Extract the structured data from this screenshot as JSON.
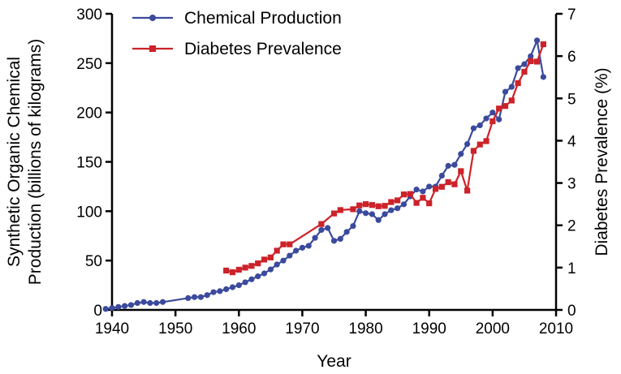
{
  "chart_data": {
    "type": "line",
    "xlabel": "Year",
    "ylabel_left_line1": "Synthetic  Organic  Chemical",
    "ylabel_left_line2": "Production (billions of kilograms)",
    "ylabel_right": "Diabetes  Prevalence (%)",
    "xlim": [
      1940,
      2010
    ],
    "ylim_left": [
      0,
      300
    ],
    "ylim_right": [
      0,
      7
    ],
    "x_ticks": [
      "1940",
      "1950",
      "1960",
      "1970",
      "1980",
      "1990",
      "2000",
      "2010"
    ],
    "y_left_ticks": [
      "0",
      "50",
      "100",
      "150",
      "200",
      "250",
      "300"
    ],
    "y_right_ticks": [
      "0",
      "1",
      "2",
      "3",
      "4",
      "5",
      "6",
      "7"
    ],
    "legend_position": "top-left",
    "series": [
      {
        "name": "Chemical  Production",
        "axis": "left",
        "color": "#3b4a9c",
        "marker": "circle",
        "x": [
          1939,
          1940,
          1941,
          1942,
          1943,
          1944,
          1945,
          1946,
          1947,
          1948,
          1952,
          1953,
          1954,
          1955,
          1956,
          1957,
          1958,
          1959,
          1960,
          1961,
          1962,
          1963,
          1964,
          1965,
          1966,
          1967,
          1968,
          1969,
          1970,
          1971,
          1972,
          1973,
          1974,
          1975,
          1976,
          1977,
          1978,
          1979,
          1980,
          1981,
          1982,
          1983,
          1984,
          1985,
          1986,
          1987,
          1988,
          1989,
          1990,
          1991,
          1992,
          1993,
          1994,
          1995,
          1996,
          1997,
          1998,
          1999,
          2000,
          2001,
          2002,
          2003,
          2004,
          2005,
          2006,
          2007,
          2008
        ],
        "y": [
          1,
          2,
          3,
          4,
          5,
          7,
          8,
          7,
          7,
          8,
          12,
          13,
          13,
          15,
          18,
          19,
          21,
          23,
          25,
          28,
          31,
          34,
          37,
          41,
          46,
          50,
          55,
          60,
          63,
          65,
          73,
          81,
          83,
          70,
          72,
          79,
          85,
          100,
          98,
          97,
          91,
          97,
          101,
          103,
          107,
          115,
          122,
          120,
          125,
          125,
          136,
          146,
          147,
          158,
          168,
          184,
          187,
          194,
          200,
          193,
          221,
          226,
          245,
          249,
          257,
          273,
          236
        ]
      },
      {
        "name": "Diabetes Prevalence",
        "axis": "right",
        "color": "#cc2229",
        "marker": "square",
        "x": [
          1958,
          1959,
          1960,
          1961,
          1962,
          1963,
          1964,
          1965,
          1966,
          1967,
          1968,
          1973,
          1975,
          1976,
          1978,
          1979,
          1980,
          1981,
          1982,
          1983,
          1984,
          1985,
          1986,
          1987,
          1988,
          1989,
          1990,
          1991,
          1992,
          1993,
          1994,
          1995,
          1996,
          1997,
          1998,
          1999,
          2000,
          2001,
          2002,
          2003,
          2004,
          2005,
          2006,
          2007,
          2008
        ],
        "y": [
          0.93,
          0.89,
          0.95,
          1.0,
          1.04,
          1.1,
          1.19,
          1.24,
          1.4,
          1.55,
          1.55,
          2.03,
          2.28,
          2.36,
          2.38,
          2.47,
          2.5,
          2.48,
          2.45,
          2.46,
          2.55,
          2.59,
          2.73,
          2.74,
          2.53,
          2.65,
          2.52,
          2.86,
          2.91,
          3.02,
          2.97,
          3.28,
          2.82,
          3.76,
          3.91,
          3.99,
          4.46,
          4.76,
          4.82,
          4.95,
          5.36,
          5.63,
          5.88,
          5.87,
          6.28
        ]
      }
    ]
  }
}
